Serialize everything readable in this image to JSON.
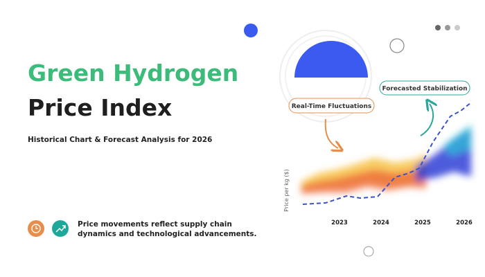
{
  "header": {
    "title_lines": [
      "Green Hydrogen",
      "Price Index"
    ],
    "subtitle": "Historical Chart & Forecast Analysis for 2026"
  },
  "note": {
    "lines": [
      "Price movements reflect supply chain",
      "dynamics and technological advancements."
    ]
  },
  "chart": {
    "y_label": "Price per kg ($)",
    "x_labels": [
      "2023",
      "2024",
      "2025",
      "2026"
    ],
    "annotations": [
      "Real-Time Fluctuations",
      "Forecasted Stabilization"
    ]
  }
}
